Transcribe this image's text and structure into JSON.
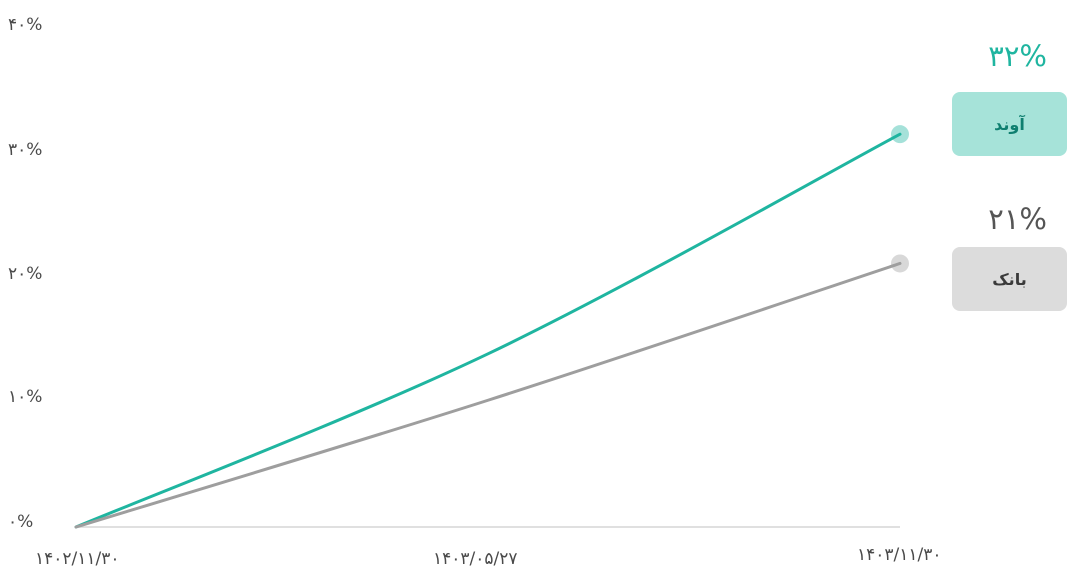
{
  "chart_data": {
    "type": "line",
    "x": [
      "۱۴۰۲/۱۱/۳۰",
      "۱۴۰۳/۰۵/۲۷",
      "۱۴۰۳/۱۱/۳۰"
    ],
    "xlabel": "",
    "ylabel": "",
    "ylim": [
      0,
      40
    ],
    "yticks": [
      "۰%",
      "۱۰%",
      "۲۰%",
      "۳۰%",
      "۴۰%"
    ],
    "grid": false,
    "legend": "right",
    "series": [
      {
        "name": "آوند",
        "label_value": "۳۲%",
        "color": "#1fb5a0",
        "values": [
          0,
          13.8,
          31.3
        ]
      },
      {
        "name": "بانک",
        "label_value": "۲۱%",
        "color": "#9e9e9e",
        "values": [
          0,
          10.1,
          21.0
        ]
      }
    ]
  },
  "colors": {
    "avand_badge_bg": "#a6e3d9",
    "avand_pct": "#1fb5a0",
    "bank_badge_bg": "#dcdcdc",
    "bank_pct": "#555555",
    "axis": "#d6d6d6",
    "tick_text": "#4a4a4a"
  }
}
